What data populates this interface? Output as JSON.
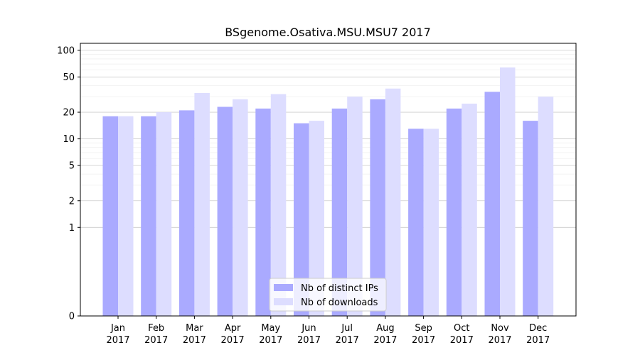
{
  "chart_data": {
    "type": "bar",
    "title": "BSgenome.Osativa.MSU.MSU7 2017",
    "xlabel": "",
    "ylabel": "",
    "y_scale": "symlog",
    "ylim": [
      0,
      120
    ],
    "y_ticks": [
      0,
      1,
      2,
      5,
      10,
      20,
      50,
      100
    ],
    "grid": "horizontal",
    "legend_position": "bottom-center",
    "categories": [
      {
        "month": "Jan",
        "year": "2017"
      },
      {
        "month": "Feb",
        "year": "2017"
      },
      {
        "month": "Mar",
        "year": "2017"
      },
      {
        "month": "Apr",
        "year": "2017"
      },
      {
        "month": "May",
        "year": "2017"
      },
      {
        "month": "Jun",
        "year": "2017"
      },
      {
        "month": "Jul",
        "year": "2017"
      },
      {
        "month": "Aug",
        "year": "2017"
      },
      {
        "month": "Sep",
        "year": "2017"
      },
      {
        "month": "Oct",
        "year": "2017"
      },
      {
        "month": "Nov",
        "year": "2017"
      },
      {
        "month": "Dec",
        "year": "2017"
      }
    ],
    "series": [
      {
        "name": "Nb of distinct IPs",
        "color": "#aaaaff",
        "values": [
          18,
          18,
          21,
          23,
          22,
          15,
          22,
          28,
          13,
          22,
          34,
          16
        ]
      },
      {
        "name": "Nb of downloads",
        "color": "#ddddff",
        "values": [
          18,
          20,
          33,
          28,
          32,
          16,
          30,
          37,
          13,
          25,
          64,
          30
        ]
      }
    ]
  }
}
